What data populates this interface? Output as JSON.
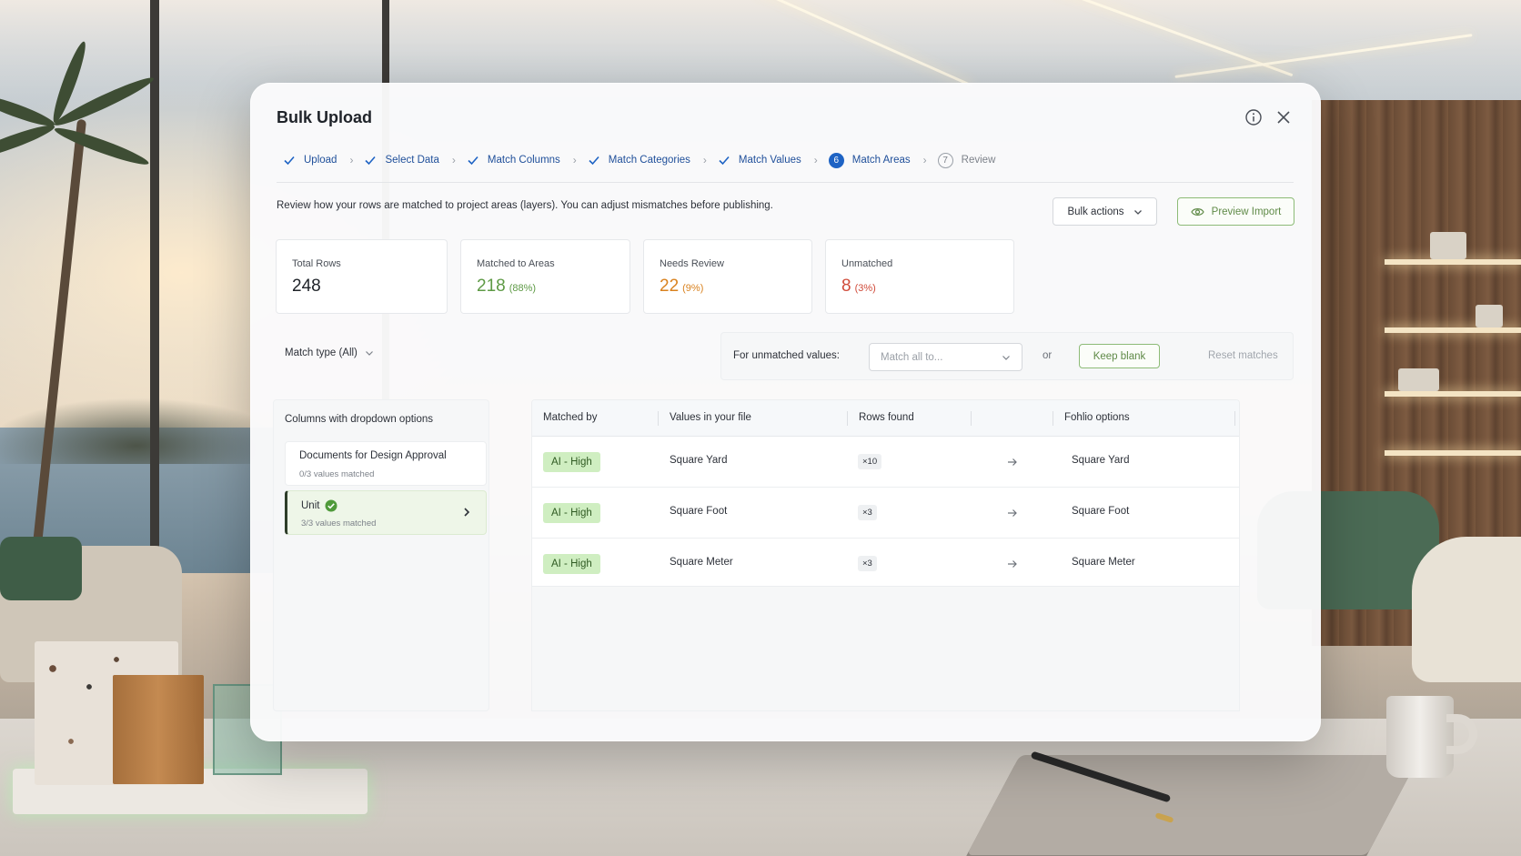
{
  "dialog": {
    "title": "Bulk Upload",
    "description": "Review how your rows are matched to project areas (layers). You can adjust mismatches before publishing."
  },
  "stepper": {
    "steps": [
      {
        "label": "Upload",
        "state": "done"
      },
      {
        "label": "Select Data",
        "state": "done"
      },
      {
        "label": "Match Columns",
        "state": "done"
      },
      {
        "label": "Match Categories",
        "state": "done"
      },
      {
        "label": "Match Values",
        "state": "done"
      },
      {
        "label": "Match Areas",
        "state": "current",
        "number": "6"
      },
      {
        "label": "Review",
        "state": "pending",
        "number": "7"
      }
    ]
  },
  "toolbar": {
    "bulk_actions_label": "Bulk actions",
    "preview_import_label": "Preview Import"
  },
  "stats": {
    "total": {
      "label": "Total Rows",
      "value": "248"
    },
    "matched": {
      "label": "Matched to Areas",
      "value": "218",
      "pct": "(88%)"
    },
    "review": {
      "label": "Needs Review",
      "value": "22",
      "pct": "(9%)"
    },
    "unmatched": {
      "label": "Unmatched",
      "value": "8",
      "pct": "(3%)"
    }
  },
  "filters": {
    "match_type_label": "Match type (All)",
    "unmatched_label": "For unmatched values:",
    "match_all_placeholder": "Match all to...",
    "or_label": "or",
    "keep_blank_label": "Keep blank",
    "reset_label": "Reset matches"
  },
  "columns_panel": {
    "title": "Columns with dropdown options",
    "items": [
      {
        "name": "Documents for Design Approval",
        "sub": "0/3 values matched"
      },
      {
        "name": "Unit",
        "sub": "3/3 values matched"
      }
    ]
  },
  "table": {
    "headers": {
      "matched_by": "Matched by",
      "values": "Values in your file",
      "rows": "Rows found",
      "options": "Fohlio options"
    },
    "rows": [
      {
        "matched_by": "AI - High",
        "value": "Square Yard",
        "count": "×10",
        "option": "Square Yard"
      },
      {
        "matched_by": "AI - High",
        "value": "Square Foot",
        "count": "×3",
        "option": "Square Foot"
      },
      {
        "matched_by": "AI - High",
        "value": "Square Meter",
        "count": "×3",
        "option": "Square Meter"
      }
    ]
  },
  "colors": {
    "accent_blue": "#1e63c4",
    "success_green": "#5e9a45",
    "warning_orange": "#d9821f",
    "danger_red": "#d04b3a"
  },
  "icons": [
    "info-icon",
    "close-icon",
    "check-icon",
    "chevron-right-icon",
    "chevron-down-icon",
    "eye-icon",
    "check-circle-icon",
    "arrow-right-icon"
  ]
}
